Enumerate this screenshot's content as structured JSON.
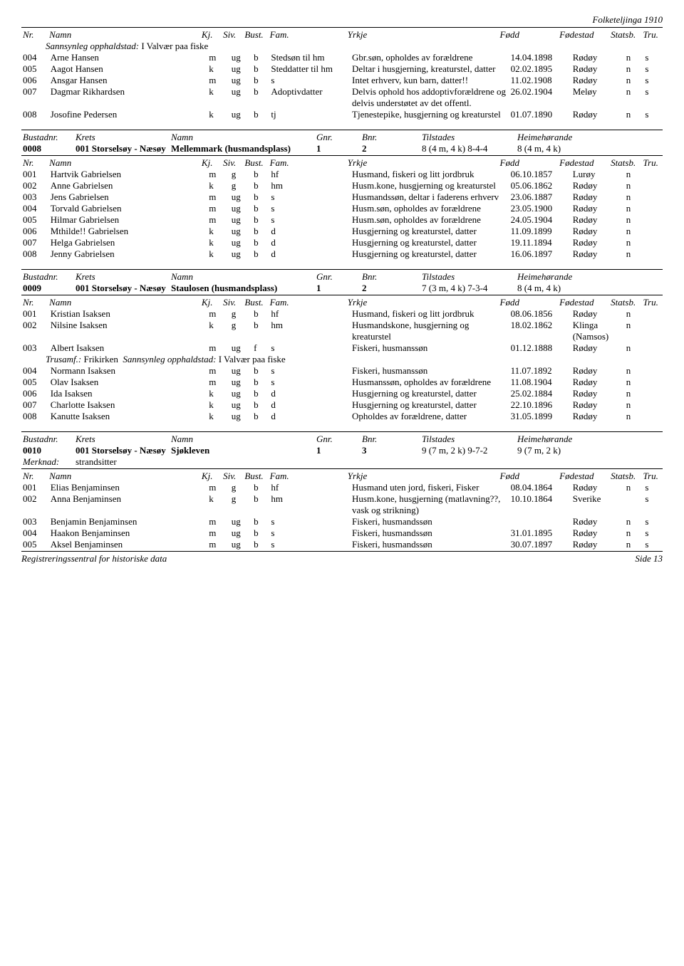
{
  "page_header": "Folketeljinga 1910",
  "footer_left": "Registreringssentral for historiske data",
  "footer_right": "Side 13",
  "col_headers": {
    "nr": "Nr.",
    "namn": "Namn",
    "kj": "Kj.",
    "siv": "Siv.",
    "bust": "Bust.",
    "fam": "Fam.",
    "yrkje": "Yrkje",
    "fodd": "Fødd",
    "fodestad": "Fødestad",
    "statsb": "Statsb.",
    "tru": "Tru."
  },
  "bustad_headers": {
    "bustadnr": "Bustadnr.",
    "krets": "Krets",
    "namn": "Namn",
    "gnr": "Gnr.",
    "bnr": "Bnr.",
    "tilstades": "Tilstades",
    "heime": "Heimehørande"
  },
  "top_note_label": "Sannsynleg opphaldstad:",
  "top_note_value": "I Valvær paa fiske",
  "section0_rows": [
    {
      "nr": "004",
      "namn": "Arne Hansen",
      "kj": "m",
      "siv": "ug",
      "bust": "b",
      "fam": "Stedsøn til hm",
      "yrkje": "Gbr.søn, opholdes av forældrene",
      "fodd": "14.04.1898",
      "fstad": "Rødøy",
      "statsb": "n",
      "tru": "s"
    },
    {
      "nr": "005",
      "namn": "Aagot Hansen",
      "kj": "k",
      "siv": "ug",
      "bust": "b",
      "fam": "Steddatter til hm",
      "yrkje": "Deltar i husgjerning, kreaturstel, datter",
      "fodd": "02.02.1895",
      "fstad": "Rødøy",
      "statsb": "n",
      "tru": "s"
    },
    {
      "nr": "006",
      "namn": "Ansgar Hansen",
      "kj": "m",
      "siv": "ug",
      "bust": "b",
      "fam": "s",
      "yrkje": "Intet erhverv, kun barn, datter!!",
      "fodd": "11.02.1908",
      "fstad": "Rødøy",
      "statsb": "n",
      "tru": "s"
    },
    {
      "nr": "007",
      "namn": "Dagmar Rikhardsen",
      "kj": "k",
      "siv": "ug",
      "bust": "b",
      "fam": "Adoptivdatter",
      "yrkje": "Delvis ophold hos addoptivforældrene og delvis understøtet av det offentl.",
      "fodd": "26.02.1904",
      "fstad": "Meløy",
      "statsb": "n",
      "tru": "s"
    },
    {
      "nr": "008",
      "namn": "Josofine Pedersen",
      "kj": "k",
      "siv": "ug",
      "bust": "b",
      "fam": "tj",
      "yrkje": "Tjenestepike, husgjerning og kreaturstel",
      "fodd": "01.07.1890",
      "fstad": "Rødøy",
      "statsb": "n",
      "tru": "s"
    }
  ],
  "bustad_0008": {
    "bustadnr": "0008",
    "krets": "001 Storselsøy - Næsøy",
    "namn": "Mellemmark (husmandsplass)",
    "gnr": "1",
    "bnr": "2",
    "tilstades": "8 (4 m, 4 k) 8-4-4",
    "heime": "8 (4 m, 4 k)"
  },
  "section1_rows": [
    {
      "nr": "001",
      "namn": "Hartvik Gabrielsen",
      "kj": "m",
      "siv": "g",
      "bust": "b",
      "fam": "hf",
      "yrkje": "Husmand, fiskeri og litt jordbruk",
      "fodd": "06.10.1857",
      "fstad": "Lurøy",
      "statsb": "n",
      "tru": ""
    },
    {
      "nr": "002",
      "namn": "Anne Gabrielsen",
      "kj": "k",
      "siv": "g",
      "bust": "b",
      "fam": "hm",
      "yrkje": "Husm.kone, husgjerning og kreaturstel",
      "fodd": "05.06.1862",
      "fstad": "Rødøy",
      "statsb": "n",
      "tru": ""
    },
    {
      "nr": "003",
      "namn": "Jens Gabrielsen",
      "kj": "m",
      "siv": "ug",
      "bust": "b",
      "fam": "s",
      "yrkje": "Husmandssøn, deltar i faderens erhverv",
      "fodd": "23.06.1887",
      "fstad": "Rødøy",
      "statsb": "n",
      "tru": ""
    },
    {
      "nr": "004",
      "namn": "Torvald Gabrielsen",
      "kj": "m",
      "siv": "ug",
      "bust": "b",
      "fam": "s",
      "yrkje": "Husm.søn, opholdes av forældrene",
      "fodd": "23.05.1900",
      "fstad": "Rødøy",
      "statsb": "n",
      "tru": ""
    },
    {
      "nr": "005",
      "namn": "Hilmar Gabrielsen",
      "kj": "m",
      "siv": "ug",
      "bust": "b",
      "fam": "s",
      "yrkje": "Husm.søn, opholdes av forældrene",
      "fodd": "24.05.1904",
      "fstad": "Rødøy",
      "statsb": "n",
      "tru": ""
    },
    {
      "nr": "006",
      "namn": "Mthilde!! Gabrielsen",
      "kj": "k",
      "siv": "ug",
      "bust": "b",
      "fam": "d",
      "yrkje": "Husgjerning og kreaturstel, datter",
      "fodd": "11.09.1899",
      "fstad": "Rødøy",
      "statsb": "n",
      "tru": ""
    },
    {
      "nr": "007",
      "namn": "Helga Gabrielsen",
      "kj": "k",
      "siv": "ug",
      "bust": "b",
      "fam": "d",
      "yrkje": "Husgjerning og kreaturstel, datter",
      "fodd": "19.11.1894",
      "fstad": "Rødøy",
      "statsb": "n",
      "tru": ""
    },
    {
      "nr": "008",
      "namn": "Jenny Gabrielsen",
      "kj": "k",
      "siv": "ug",
      "bust": "b",
      "fam": "d",
      "yrkje": "Husgjerning og kreaturstel, datter",
      "fodd": "16.06.1897",
      "fstad": "Rødøy",
      "statsb": "n",
      "tru": ""
    }
  ],
  "bustad_0009": {
    "bustadnr": "0009",
    "krets": "001 Storselsøy - Næsøy",
    "namn": "Staulosen (husmandsplass)",
    "gnr": "1",
    "bnr": "2",
    "tilstades": "7 (3 m, 4 k) 7-3-4",
    "heime": "8 (4 m, 4 k)"
  },
  "section2_rows": [
    {
      "nr": "001",
      "namn": "Kristian Isaksen",
      "kj": "m",
      "siv": "g",
      "bust": "b",
      "fam": "hf",
      "yrkje": "Husmand, fiskeri og litt jordbruk",
      "fodd": "08.06.1856",
      "fstad": "Rødøy",
      "statsb": "n",
      "tru": ""
    },
    {
      "nr": "002",
      "namn": "Nilsine Isaksen",
      "kj": "k",
      "siv": "g",
      "bust": "b",
      "fam": "hm",
      "yrkje": "Husmandskone, husgjerning og kreaturstel",
      "fodd": "18.02.1862",
      "fstad": "Klinga (Namsos)",
      "statsb": "n",
      "tru": ""
    },
    {
      "nr": "003",
      "namn": "Albert Isaksen",
      "kj": "m",
      "siv": "ug",
      "bust": "f",
      "fam": "s",
      "yrkje": "Fiskeri, husmanssøn",
      "fodd": "01.12.1888",
      "fstad": "Rødøy",
      "statsb": "n",
      "tru": ""
    }
  ],
  "trusamf_label": "Trusamf.:",
  "trusamf_value": "Frikirken",
  "sannsynleg_label": "Sannsynleg opphaldstad:",
  "sannsynleg_value": "I Valvær paa fiske",
  "section2b_rows": [
    {
      "nr": "004",
      "namn": "Normann Isaksen",
      "kj": "m",
      "siv": "ug",
      "bust": "b",
      "fam": "s",
      "yrkje": "Fiskeri, husmanssøn",
      "fodd": "11.07.1892",
      "fstad": "Rødøy",
      "statsb": "n",
      "tru": ""
    },
    {
      "nr": "005",
      "namn": "Olav Isaksen",
      "kj": "m",
      "siv": "ug",
      "bust": "b",
      "fam": "s",
      "yrkje": "Husmanssøn, opholdes av forældrene",
      "fodd": "11.08.1904",
      "fstad": "Rødøy",
      "statsb": "n",
      "tru": ""
    },
    {
      "nr": "006",
      "namn": "Ida Isaksen",
      "kj": "k",
      "siv": "ug",
      "bust": "b",
      "fam": "d",
      "yrkje": "Husgjerning og kreaturstel, datter",
      "fodd": "25.02.1884",
      "fstad": "Rødøy",
      "statsb": "n",
      "tru": ""
    },
    {
      "nr": "007",
      "namn": "Charlotte Isaksen",
      "kj": "k",
      "siv": "ug",
      "bust": "b",
      "fam": "d",
      "yrkje": "Husgjerning og kreaturstel, datter",
      "fodd": "22.10.1896",
      "fstad": "Rødøy",
      "statsb": "n",
      "tru": ""
    },
    {
      "nr": "008",
      "namn": "Kanutte Isaksen",
      "kj": "k",
      "siv": "ug",
      "bust": "b",
      "fam": "d",
      "yrkje": "Opholdes av forældrene, datter",
      "fodd": "31.05.1899",
      "fstad": "Rødøy",
      "statsb": "n",
      "tru": ""
    }
  ],
  "bustad_0010": {
    "bustadnr": "0010",
    "krets": "001 Storselsøy - Næsøy",
    "namn": "Sjøkleven",
    "gnr": "1",
    "bnr": "3",
    "tilstades": "9 (7 m, 2 k) 9-7-2",
    "heime": "9 (7 m, 2 k)"
  },
  "merknad_label": "Merknad:",
  "merknad_value": "strandsitter",
  "section3_rows": [
    {
      "nr": "001",
      "namn": "Elias Benjaminsen",
      "kj": "m",
      "siv": "g",
      "bust": "b",
      "fam": "hf",
      "yrkje": "Husmand uten jord, fiskeri, Fisker",
      "fodd": "08.04.1864",
      "fstad": "Rødøy",
      "statsb": "n",
      "tru": "s"
    },
    {
      "nr": "002",
      "namn": "Anna Benjaminsen",
      "kj": "k",
      "siv": "g",
      "bust": "b",
      "fam": "hm",
      "yrkje": "Husm.kone, husgjerning (matlavning??, vask og strikning)",
      "fodd": "10.10.1864",
      "fstad": "Sverike",
      "statsb": "",
      "tru": "s"
    },
    {
      "nr": "003",
      "namn": "Benjamin Benjaminsen",
      "kj": "m",
      "siv": "ug",
      "bust": "b",
      "fam": "s",
      "yrkje": "Fiskeri, husmandssøn",
      "fodd": "",
      "fstad": "Rødøy",
      "statsb": "n",
      "tru": "s"
    },
    {
      "nr": "004",
      "namn": "Haakon Benjaminsen",
      "kj": "m",
      "siv": "ug",
      "bust": "b",
      "fam": "s",
      "yrkje": "Fiskeri, husmandssøn",
      "fodd": "31.01.1895",
      "fstad": "Rødøy",
      "statsb": "n",
      "tru": "s"
    },
    {
      "nr": "005",
      "namn": "Aksel Benjaminsen",
      "kj": "m",
      "siv": "ug",
      "bust": "b",
      "fam": "s",
      "yrkje": "Fiskeri, husmandssøn",
      "fodd": "30.07.1897",
      "fstad": "Rødøy",
      "statsb": "n",
      "tru": "s"
    }
  ]
}
